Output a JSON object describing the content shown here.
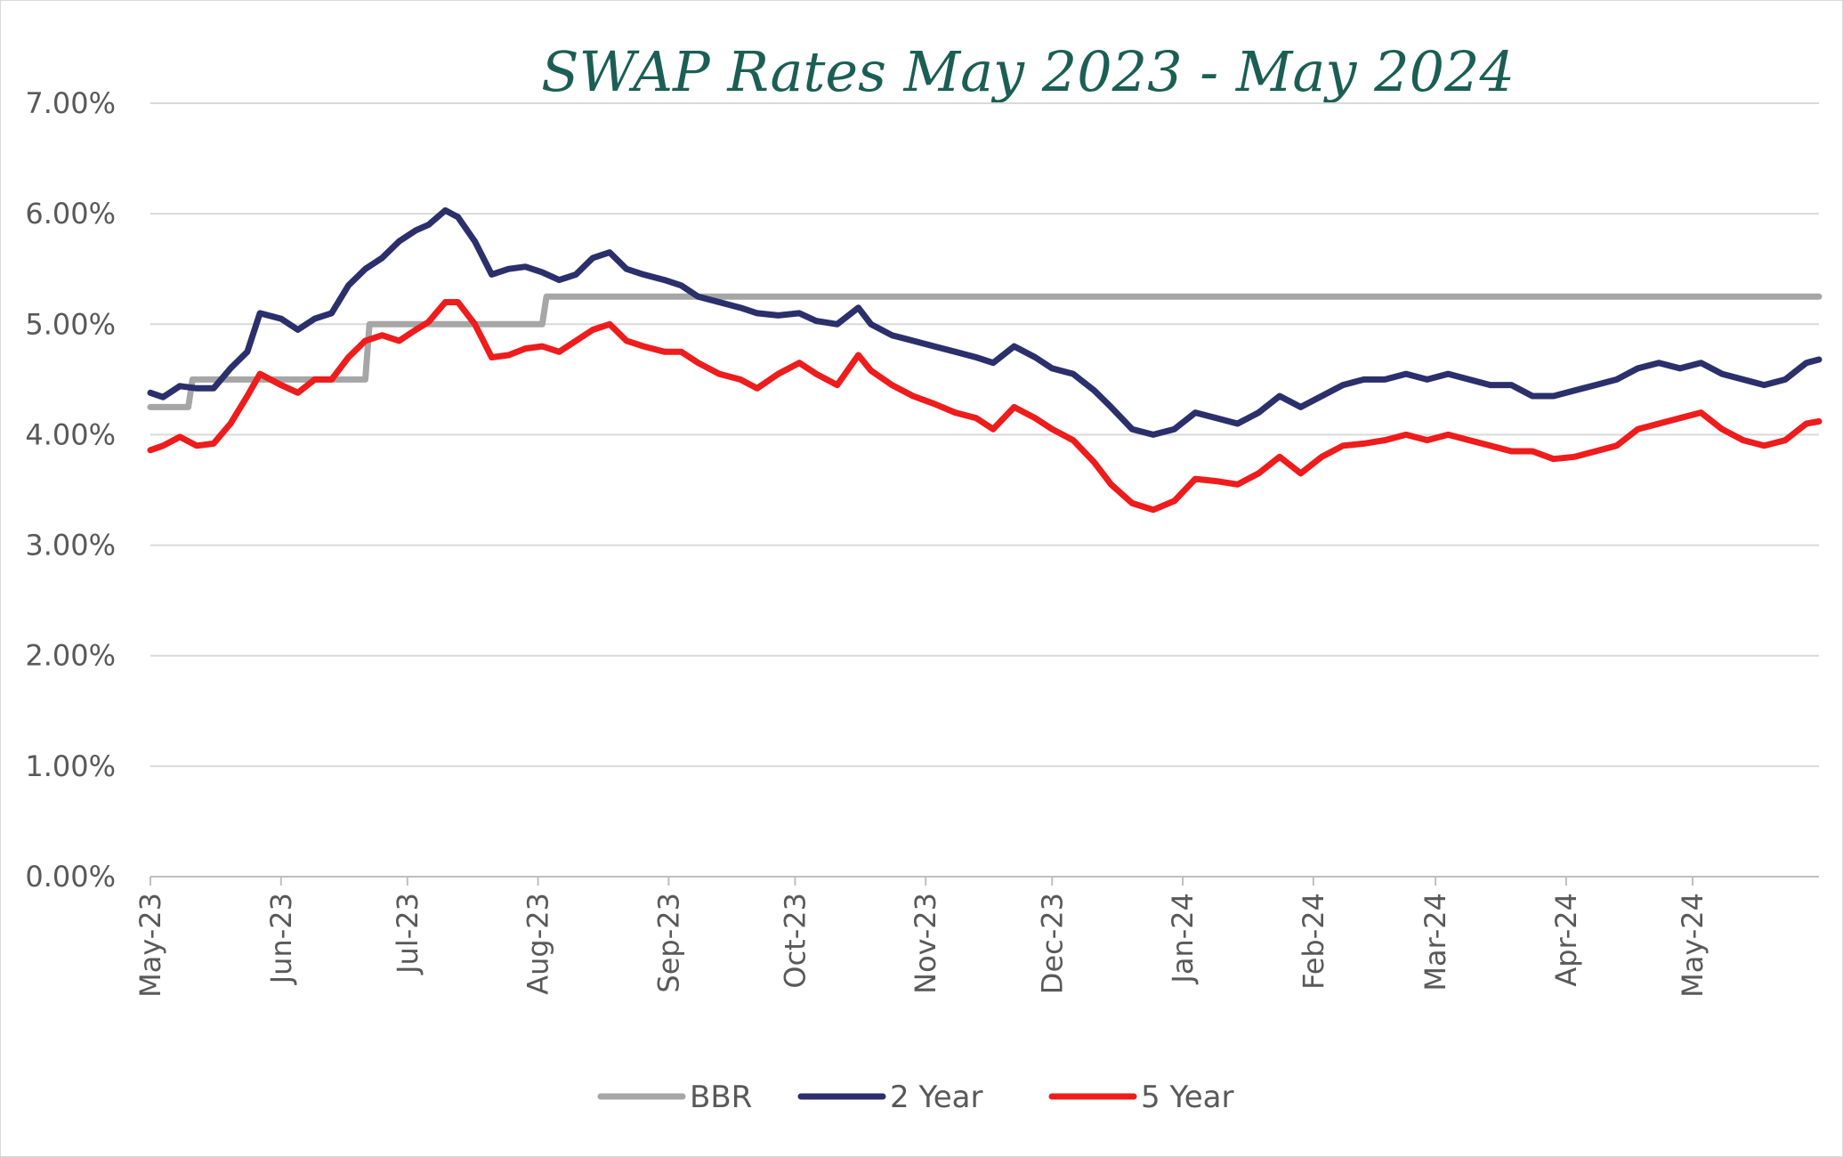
{
  "chart_data": {
    "type": "line",
    "title": "SWAP Rates May 2023 - May 2024",
    "xlabel": "",
    "ylabel": "",
    "ylim": [
      0,
      7
    ],
    "y_ticks": [
      "0.00%",
      "1.00%",
      "2.00%",
      "3.00%",
      "4.00%",
      "5.00%",
      "6.00%",
      "7.00%"
    ],
    "x_ticks": [
      "May-23",
      "Jun-23",
      "Jul-23",
      "Aug-23",
      "Sep-23",
      "Oct-23",
      "Nov-23",
      "Dec-23",
      "Jan-24",
      "Feb-24",
      "Mar-24",
      "Apr-24",
      "May-24"
    ],
    "x_range": [
      "2023-05-01",
      "2024-05-31"
    ],
    "grid": true,
    "legend_position": "bottom",
    "series": [
      {
        "name": "BBR",
        "color": "#a6a6a6",
        "x": [
          "2023-05-01",
          "2023-05-10",
          "2023-05-11",
          "2023-06-21",
          "2023-06-22",
          "2023-08-02",
          "2023-08-03",
          "2024-05-31"
        ],
        "values": [
          4.25,
          4.25,
          4.5,
          4.5,
          5.0,
          5.0,
          5.25,
          5.25
        ]
      },
      {
        "name": "2 Year",
        "color": "#2b2f6b",
        "x": [
          "2023-05-01",
          "2023-05-04",
          "2023-05-08",
          "2023-05-12",
          "2023-05-16",
          "2023-05-20",
          "2023-05-24",
          "2023-05-27",
          "2023-06-01",
          "2023-06-05",
          "2023-06-09",
          "2023-06-13",
          "2023-06-17",
          "2023-06-21",
          "2023-06-25",
          "2023-06-29",
          "2023-07-03",
          "2023-07-06",
          "2023-07-10",
          "2023-07-13",
          "2023-07-17",
          "2023-07-21",
          "2023-07-25",
          "2023-07-29",
          "2023-08-02",
          "2023-08-06",
          "2023-08-10",
          "2023-08-14",
          "2023-08-18",
          "2023-08-22",
          "2023-08-26",
          "2023-08-31",
          "2023-09-04",
          "2023-09-08",
          "2023-09-13",
          "2023-09-18",
          "2023-09-22",
          "2023-09-27",
          "2023-10-02",
          "2023-10-06",
          "2023-10-11",
          "2023-10-16",
          "2023-10-19",
          "2023-10-24",
          "2023-10-29",
          "2023-11-03",
          "2023-11-08",
          "2023-11-13",
          "2023-11-17",
          "2023-11-22",
          "2023-11-27",
          "2023-12-01",
          "2023-12-06",
          "2023-12-11",
          "2023-12-15",
          "2023-12-20",
          "2023-12-25",
          "2023-12-30",
          "2024-01-04",
          "2024-01-09",
          "2024-01-14",
          "2024-01-19",
          "2024-01-24",
          "2024-01-29",
          "2024-02-03",
          "2024-02-08",
          "2024-02-13",
          "2024-02-18",
          "2024-02-23",
          "2024-02-28",
          "2024-03-04",
          "2024-03-09",
          "2024-03-14",
          "2024-03-19",
          "2024-03-24",
          "2024-03-29",
          "2024-04-03",
          "2024-04-08",
          "2024-04-13",
          "2024-04-18",
          "2024-04-23",
          "2024-04-28",
          "2024-05-03",
          "2024-05-08",
          "2024-05-13",
          "2024-05-18",
          "2024-05-23",
          "2024-05-28",
          "2024-05-31"
        ],
        "values": [
          4.38,
          4.34,
          4.44,
          4.42,
          4.42,
          4.6,
          4.75,
          5.1,
          5.05,
          4.95,
          5.05,
          5.1,
          5.35,
          5.5,
          5.6,
          5.75,
          5.85,
          5.9,
          6.03,
          5.97,
          5.75,
          5.45,
          5.5,
          5.52,
          5.47,
          5.4,
          5.45,
          5.6,
          5.65,
          5.5,
          5.45,
          5.4,
          5.35,
          5.25,
          5.2,
          5.15,
          5.1,
          5.08,
          5.1,
          5.03,
          5.0,
          5.15,
          5.0,
          4.9,
          4.85,
          4.8,
          4.75,
          4.7,
          4.65,
          4.8,
          4.7,
          4.6,
          4.55,
          4.4,
          4.25,
          4.05,
          4.0,
          4.05,
          4.2,
          4.15,
          4.1,
          4.2,
          4.35,
          4.25,
          4.35,
          4.45,
          4.5,
          4.5,
          4.55,
          4.5,
          4.55,
          4.5,
          4.45,
          4.45,
          4.35,
          4.35,
          4.4,
          4.45,
          4.5,
          4.6,
          4.65,
          4.6,
          4.65,
          4.55,
          4.5,
          4.45,
          4.5,
          4.65,
          4.68
        ]
      },
      {
        "name": "5 Year",
        "color": "#ee1c1c",
        "x": [
          "2023-05-01",
          "2023-05-04",
          "2023-05-08",
          "2023-05-12",
          "2023-05-16",
          "2023-05-20",
          "2023-05-24",
          "2023-05-27",
          "2023-06-01",
          "2023-06-05",
          "2023-06-09",
          "2023-06-13",
          "2023-06-17",
          "2023-06-21",
          "2023-06-25",
          "2023-06-29",
          "2023-07-03",
          "2023-07-06",
          "2023-07-10",
          "2023-07-13",
          "2023-07-17",
          "2023-07-21",
          "2023-07-25",
          "2023-07-29",
          "2023-08-02",
          "2023-08-06",
          "2023-08-10",
          "2023-08-14",
          "2023-08-18",
          "2023-08-22",
          "2023-08-26",
          "2023-08-31",
          "2023-09-04",
          "2023-09-08",
          "2023-09-13",
          "2023-09-18",
          "2023-09-22",
          "2023-09-27",
          "2023-10-02",
          "2023-10-06",
          "2023-10-11",
          "2023-10-16",
          "2023-10-19",
          "2023-10-24",
          "2023-10-29",
          "2023-11-03",
          "2023-11-08",
          "2023-11-13",
          "2023-11-17",
          "2023-11-22",
          "2023-11-27",
          "2023-12-01",
          "2023-12-06",
          "2023-12-11",
          "2023-12-15",
          "2023-12-20",
          "2023-12-25",
          "2023-12-30",
          "2024-01-04",
          "2024-01-09",
          "2024-01-14",
          "2024-01-19",
          "2024-01-24",
          "2024-01-29",
          "2024-02-03",
          "2024-02-08",
          "2024-02-13",
          "2024-02-18",
          "2024-02-23",
          "2024-02-28",
          "2024-03-04",
          "2024-03-09",
          "2024-03-14",
          "2024-03-19",
          "2024-03-24",
          "2024-03-29",
          "2024-04-03",
          "2024-04-08",
          "2024-04-13",
          "2024-04-18",
          "2024-04-23",
          "2024-04-28",
          "2024-05-03",
          "2024-05-08",
          "2024-05-13",
          "2024-05-18",
          "2024-05-23",
          "2024-05-28",
          "2024-05-31"
        ],
        "values": [
          3.86,
          3.9,
          3.98,
          3.9,
          3.92,
          4.1,
          4.35,
          4.55,
          4.45,
          4.38,
          4.5,
          4.5,
          4.7,
          4.85,
          4.9,
          4.85,
          4.95,
          5.02,
          5.2,
          5.2,
          5.0,
          4.7,
          4.72,
          4.78,
          4.8,
          4.75,
          4.85,
          4.95,
          5.0,
          4.85,
          4.8,
          4.75,
          4.75,
          4.65,
          4.55,
          4.5,
          4.42,
          4.55,
          4.65,
          4.55,
          4.45,
          4.72,
          4.58,
          4.45,
          4.35,
          4.28,
          4.2,
          4.15,
          4.05,
          4.25,
          4.15,
          4.05,
          3.95,
          3.75,
          3.55,
          3.38,
          3.32,
          3.4,
          3.6,
          3.58,
          3.55,
          3.65,
          3.8,
          3.65,
          3.8,
          3.9,
          3.92,
          3.95,
          4.0,
          3.95,
          4.0,
          3.95,
          3.9,
          3.85,
          3.85,
          3.78,
          3.8,
          3.85,
          3.9,
          4.05,
          4.1,
          4.15,
          4.2,
          4.05,
          3.95,
          3.9,
          3.95,
          4.1,
          4.12
        ]
      }
    ]
  }
}
